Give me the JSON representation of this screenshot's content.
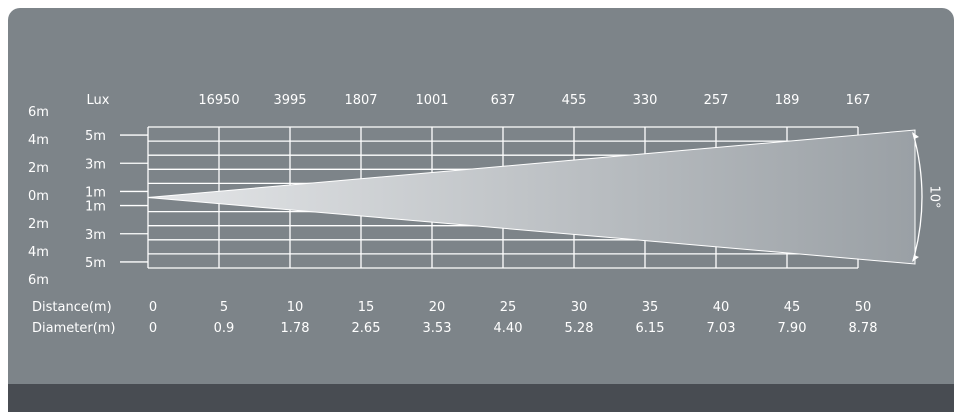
{
  "lux": {
    "label": "Lux",
    "values": [
      "16950",
      "3995",
      "1807",
      "1001",
      "637",
      "455",
      "330",
      "257",
      "189",
      "167"
    ]
  },
  "outer_scale": [
    "6m",
    "4m",
    "2m",
    "0m",
    "2m",
    "4m",
    "6m"
  ],
  "inner_scale": [
    "5m",
    "3m",
    "1m",
    "1m",
    "3m",
    "5m"
  ],
  "distance": {
    "label": "Distance(m)",
    "values": [
      0,
      5,
      10,
      15,
      20,
      25,
      30,
      35,
      40,
      45,
      50
    ]
  },
  "diameter": {
    "label": "Diameter(m)",
    "values": [
      "0",
      "0.9",
      "1.78",
      "2.65",
      "3.53",
      "4.40",
      "5.28",
      "6.15",
      "7.03",
      "7.90",
      "8.78"
    ]
  },
  "beam_angle": "10°",
  "colors": {
    "panel": "#7d8489",
    "footer": "#484c52",
    "grid": "#ffffff",
    "beam_light": "#dfe1e3",
    "beam_dark": "#9aa0a5"
  }
}
